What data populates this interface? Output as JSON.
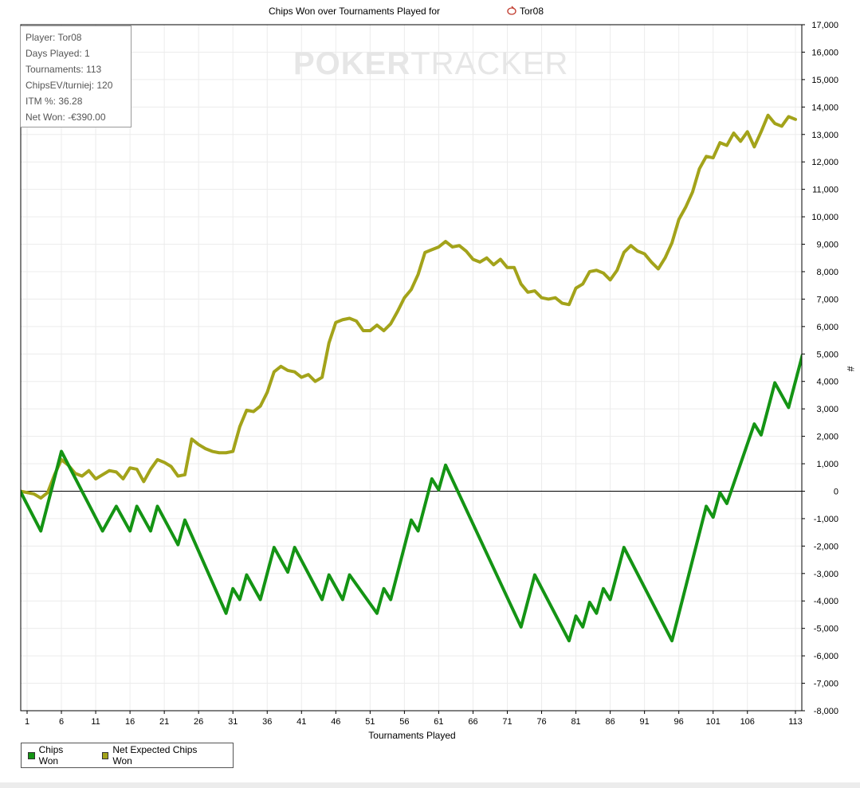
{
  "window": {
    "title": "Chips Won over Tournaments Played for",
    "player_name": "Tor08"
  },
  "info_box": {
    "lines": [
      "Player: Tor08",
      "Days Played: 1",
      "Tournaments: 113",
      "ChipsEV/turniej: 120",
      "ITM %: 36.28",
      "Net Won: -€390.00"
    ]
  },
  "watermark": {
    "part1": "POKER",
    "part2": "TRACKER"
  },
  "colors": {
    "chips_won": "#149414",
    "net_expected": "#a3a31a",
    "grid": "#ececec",
    "axis": "#000000"
  },
  "chart_data": {
    "type": "line",
    "title": "Chips Won over Tournaments Played for Tor08",
    "xlabel": "Tournaments Played",
    "ylabel": "#",
    "xlim": [
      1,
      113
    ],
    "ylim": [
      -8000,
      17000
    ],
    "x_ticks": [
      1,
      6,
      11,
      16,
      21,
      26,
      31,
      36,
      41,
      46,
      51,
      56,
      61,
      66,
      71,
      76,
      81,
      86,
      91,
      96,
      101,
      106,
      113
    ],
    "y_ticks": [
      "17,000",
      "16,000",
      "15,000",
      "14,000",
      "13,000",
      "12,000",
      "11,000",
      "10,000",
      "9,000",
      "8,000",
      "7,000",
      "6,000",
      "5,000",
      "4,000",
      "3,000",
      "2,000",
      "1,000",
      "0",
      "-1,000",
      "-2,000",
      "-3,000",
      "-4,000",
      "-5,000",
      "-6,000",
      "-7,000",
      "-8,000"
    ],
    "y_tick_values": [
      17000,
      16000,
      15000,
      14000,
      13000,
      12000,
      11000,
      10000,
      9000,
      8000,
      7000,
      6000,
      5000,
      4000,
      3000,
      2000,
      1000,
      0,
      -1000,
      -2000,
      -3000,
      -4000,
      -5000,
      -6000,
      -7000,
      -8000
    ],
    "grid": true,
    "legend_position": "bottom-left",
    "series": [
      {
        "name": "Chips Won",
        "points": [
          [
            0,
            0
          ],
          [
            3,
            -1450
          ],
          [
            6,
            1450
          ],
          [
            12,
            -1450
          ],
          [
            14,
            -550
          ],
          [
            16,
            -1450
          ],
          [
            17,
            -550
          ],
          [
            19,
            -1450
          ],
          [
            20,
            -550
          ],
          [
            23,
            -1950
          ],
          [
            24,
            -1050
          ],
          [
            30,
            -4450
          ],
          [
            31,
            -3550
          ],
          [
            32,
            -3950
          ],
          [
            33,
            -3050
          ],
          [
            35,
            -3950
          ],
          [
            37,
            -2050
          ],
          [
            39,
            -2950
          ],
          [
            40,
            -2050
          ],
          [
            44,
            -3950
          ],
          [
            45,
            -3050
          ],
          [
            47,
            -3950
          ],
          [
            48,
            -3050
          ],
          [
            52,
            -4450
          ],
          [
            53,
            -3550
          ],
          [
            54,
            -3950
          ],
          [
            57,
            -1050
          ],
          [
            58,
            -1450
          ],
          [
            60,
            450
          ],
          [
            61,
            50
          ],
          [
            62,
            950
          ],
          [
            73,
            -4950
          ],
          [
            75,
            -3050
          ],
          [
            80,
            -5450
          ],
          [
            81,
            -4550
          ],
          [
            82,
            -4950
          ],
          [
            83,
            -4050
          ],
          [
            84,
            -4450
          ],
          [
            85,
            -3550
          ],
          [
            86,
            -3950
          ],
          [
            88,
            -2050
          ],
          [
            95,
            -5450
          ],
          [
            100,
            -550
          ],
          [
            101,
            -950
          ],
          [
            102,
            -50
          ],
          [
            103,
            -450
          ],
          [
            107,
            2450
          ],
          [
            108,
            2050
          ],
          [
            110,
            3950
          ],
          [
            112,
            3050
          ],
          [
            114,
            4950
          ]
        ]
      },
      {
        "name": "Net Expected Chips Won",
        "points": [
          [
            0,
            0
          ],
          [
            1,
            -50
          ],
          [
            2,
            -100
          ],
          [
            3,
            -250
          ],
          [
            4,
            -50
          ],
          [
            5,
            600
          ],
          [
            6,
            1150
          ],
          [
            7,
            950
          ],
          [
            8,
            650
          ],
          [
            9,
            550
          ],
          [
            10,
            750
          ],
          [
            11,
            450
          ],
          [
            12,
            600
          ],
          [
            13,
            750
          ],
          [
            14,
            700
          ],
          [
            15,
            450
          ],
          [
            16,
            850
          ],
          [
            17,
            800
          ],
          [
            18,
            350
          ],
          [
            19,
            800
          ],
          [
            20,
            1150
          ],
          [
            21,
            1050
          ],
          [
            22,
            900
          ],
          [
            23,
            550
          ],
          [
            24,
            600
          ],
          [
            25,
            1900
          ],
          [
            26,
            1700
          ],
          [
            27,
            1550
          ],
          [
            28,
            1450
          ],
          [
            29,
            1400
          ],
          [
            30,
            1400
          ],
          [
            31,
            1450
          ],
          [
            32,
            2350
          ],
          [
            33,
            2950
          ],
          [
            34,
            2900
          ],
          [
            35,
            3100
          ],
          [
            36,
            3600
          ],
          [
            37,
            4350
          ],
          [
            38,
            4550
          ],
          [
            39,
            4400
          ],
          [
            40,
            4350
          ],
          [
            41,
            4150
          ],
          [
            42,
            4250
          ],
          [
            43,
            4000
          ],
          [
            44,
            4150
          ],
          [
            45,
            5400
          ],
          [
            46,
            6150
          ],
          [
            47,
            6250
          ],
          [
            48,
            6300
          ],
          [
            49,
            6200
          ],
          [
            50,
            5850
          ],
          [
            51,
            5850
          ],
          [
            52,
            6050
          ],
          [
            53,
            5850
          ],
          [
            54,
            6100
          ],
          [
            55,
            6550
          ],
          [
            56,
            7050
          ],
          [
            57,
            7350
          ],
          [
            58,
            7900
          ],
          [
            59,
            8700
          ],
          [
            60,
            8800
          ],
          [
            61,
            8900
          ],
          [
            62,
            9100
          ],
          [
            63,
            8900
          ],
          [
            64,
            8950
          ],
          [
            65,
            8750
          ],
          [
            66,
            8450
          ],
          [
            67,
            8350
          ],
          [
            68,
            8500
          ],
          [
            69,
            8250
          ],
          [
            70,
            8450
          ],
          [
            71,
            8150
          ],
          [
            72,
            8150
          ],
          [
            73,
            7550
          ],
          [
            74,
            7250
          ],
          [
            75,
            7300
          ],
          [
            76,
            7050
          ],
          [
            77,
            7000
          ],
          [
            78,
            7050
          ],
          [
            79,
            6850
          ],
          [
            80,
            6800
          ],
          [
            81,
            7400
          ],
          [
            82,
            7550
          ],
          [
            83,
            8000
          ],
          [
            84,
            8050
          ],
          [
            85,
            7950
          ],
          [
            86,
            7700
          ],
          [
            87,
            8050
          ],
          [
            88,
            8700
          ],
          [
            89,
            8950
          ],
          [
            90,
            8750
          ],
          [
            91,
            8650
          ],
          [
            92,
            8350
          ],
          [
            93,
            8100
          ],
          [
            94,
            8500
          ],
          [
            95,
            9050
          ],
          [
            96,
            9900
          ],
          [
            97,
            10350
          ],
          [
            98,
            10900
          ],
          [
            99,
            11750
          ],
          [
            100,
            12200
          ],
          [
            101,
            12150
          ],
          [
            102,
            12700
          ],
          [
            103,
            12600
          ],
          [
            104,
            13050
          ],
          [
            105,
            12750
          ],
          [
            106,
            13100
          ],
          [
            107,
            12550
          ],
          [
            108,
            13100
          ],
          [
            109,
            13700
          ],
          [
            110,
            13400
          ],
          [
            111,
            13300
          ],
          [
            112,
            13650
          ],
          [
            113,
            13550
          ]
        ]
      }
    ]
  },
  "legend": {
    "items": [
      "Chips Won",
      "Net Expected Chips Won"
    ]
  }
}
